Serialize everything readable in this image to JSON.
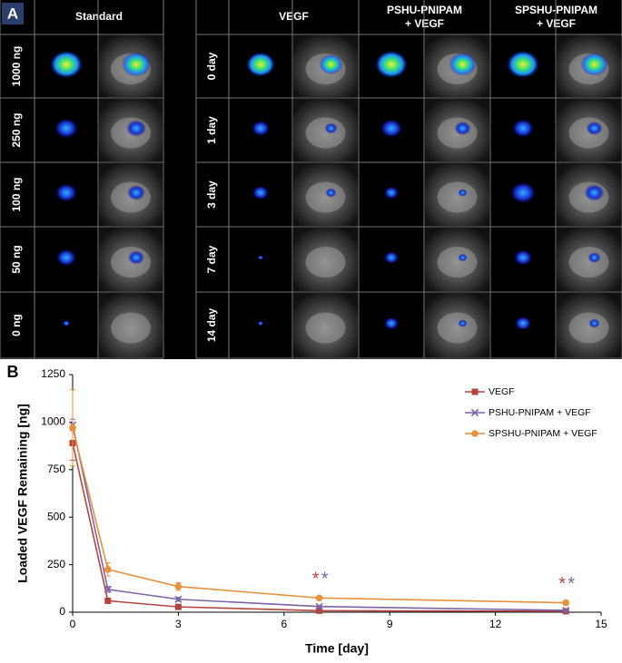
{
  "panel_a": {
    "label": "A",
    "left_header": "Standard",
    "right_headers": [
      [
        "VEGF"
      ],
      [
        "PSHU-PNIPAM",
        "+ VEGF"
      ],
      [
        "SPSHU-PNIPAM",
        "+ VEGF"
      ]
    ],
    "left_rows": [
      "1000 ng",
      "250 ng",
      "100 ng",
      "50 ng",
      "0 ng"
    ],
    "right_rows": [
      "0 day",
      "1 day",
      "3 day",
      "7 day",
      "14 day"
    ]
  },
  "chart_data": {
    "type": "line",
    "panel_label": "B",
    "x_label": "Time [day]",
    "y_label": "Loaded VEGF Remaining [ng]",
    "x": [
      0,
      1,
      3,
      7,
      14
    ],
    "series": [
      {
        "name": "VEGF",
        "color": "#b5443f",
        "marker": "square",
        "values": [
          890,
          60,
          28,
          8,
          5
        ],
        "errors": [
          90,
          10,
          5,
          3,
          2
        ]
      },
      {
        "name": "PSHU-PNIPAM + VEGF",
        "color": "#7e62a8",
        "marker": "x",
        "values": [
          985,
          120,
          68,
          30,
          10
        ],
        "errors": [
          30,
          15,
          10,
          5,
          3
        ]
      },
      {
        "name": "SPSHU-PNIPAM + VEGF",
        "color": "#e8913a",
        "marker": "circle",
        "values": [
          970,
          225,
          135,
          75,
          50
        ],
        "errors": [
          200,
          35,
          20,
          8,
          8
        ]
      }
    ],
    "annotations": [
      {
        "text": "*",
        "x": 7,
        "color": "#b5443f"
      },
      {
        "text": "*",
        "x": 7,
        "color": "#7e62a8"
      },
      {
        "text": "*",
        "x": 14,
        "color": "#b5443f"
      },
      {
        "text": "*",
        "x": 14,
        "color": "#7e62a8"
      }
    ],
    "xlim": [
      0,
      15
    ],
    "xticks": [
      0,
      3,
      6,
      9,
      12,
      15
    ],
    "ylim": [
      0,
      1250
    ],
    "yticks": [
      0,
      250,
      500,
      750,
      1000,
      1250
    ],
    "legend": "top-right",
    "grid": false
  }
}
